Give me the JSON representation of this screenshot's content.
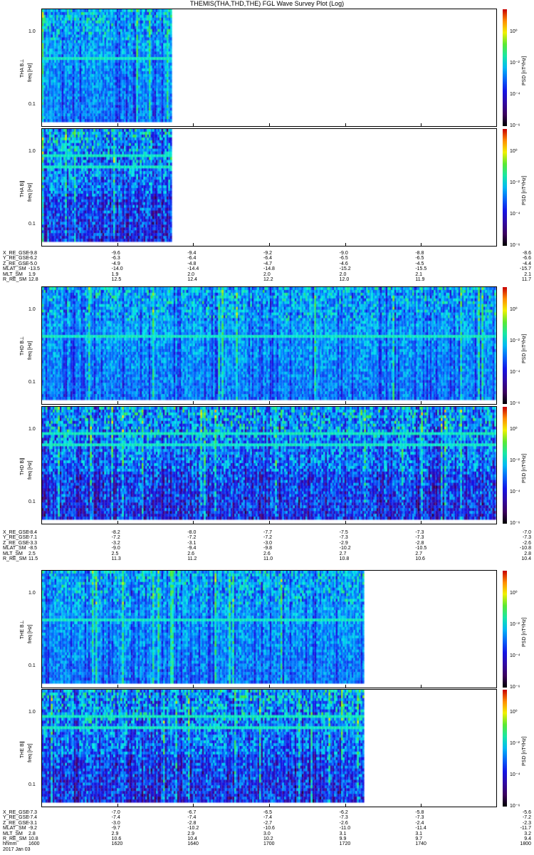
{
  "title": "THEMIS(THA,THD,THE) FGL Wave Survey Plot (Log)",
  "chart_data": {
    "type": "heatmap",
    "title": "THEMIS(THA,THD,THE) FGL Wave Survey Plot (Log)",
    "panels": [
      {
        "probe": "THA",
        "name": "THA B⊥",
        "ylabel": "freq [Hz]",
        "yticks": [
          "1.0",
          "0.1"
        ],
        "ylim": [
          0.05,
          2.1
        ],
        "data_end_fraction": 0.285,
        "zlabel": "PSD [nT²/Hz]"
      },
      {
        "probe": "THA",
        "name": "THA B∥",
        "ylabel": "freq [Hz]",
        "yticks": [
          "1.0",
          "0.1"
        ],
        "ylim": [
          0.05,
          2.1
        ],
        "data_end_fraction": 0.285,
        "zlabel": "PSD [nT²/Hz]"
      },
      {
        "probe": "THD",
        "name": "THD B⊥",
        "ylabel": "freq [Hz]",
        "yticks": [
          "1.0",
          "0.1"
        ],
        "ylim": [
          0.05,
          2.1
        ],
        "data_end_fraction": 1.0,
        "zlabel": "PSD [nT²/Hz]"
      },
      {
        "probe": "THD",
        "name": "THD B∥",
        "ylabel": "freq [Hz]",
        "yticks": [
          "1.0",
          "0.1"
        ],
        "ylim": [
          0.05,
          2.1
        ],
        "data_end_fraction": 1.0,
        "zlabel": "PSD [nT²/Hz]"
      },
      {
        "probe": "THE",
        "name": "THE B⊥",
        "ylabel": "freq [Hz]",
        "yticks": [
          "1.0",
          "0.1"
        ],
        "ylim": [
          0.05,
          2.1
        ],
        "data_end_fraction": 0.708,
        "zlabel": "PSD [nT²/Hz]"
      },
      {
        "probe": "THE",
        "name": "THE B∥",
        "ylabel": "freq [Hz]",
        "yticks": [
          "1.0",
          "0.1"
        ],
        "ylim": [
          0.05,
          2.1
        ],
        "data_end_fraction": 0.708,
        "zlabel": "PSD [nT²/Hz]"
      }
    ],
    "colorbar_ticks": [
      "10⁰",
      "10⁻²",
      "10⁻⁴",
      "10⁻⁶"
    ],
    "colorbar_range": [
      1e-07,
      10
    ],
    "ephemeris": [
      {
        "rows": [
          {
            "label": "X_RE_GSE",
            "values": [
              "-9.8",
              "-9.6",
              "-9.4",
              "-9.2",
              "-9.0",
              "-8.8",
              "-8.6"
            ]
          },
          {
            "label": "Y_RE_GSE",
            "values": [
              "-6.2",
              "-6.3",
              "-6.4",
              "-6.4",
              "-6.5",
              "-6.5",
              "-6.6"
            ]
          },
          {
            "label": "Z_RE_GSE",
            "values": [
              "-5.0",
              "-4.9",
              "-4.8",
              "-4.7",
              "-4.6",
              "-4.5",
              "-4.4"
            ]
          },
          {
            "label": "MLAT_SM",
            "values": [
              "-13.5",
              "-14.0",
              "-14.4",
              "-14.8",
              "-15.2",
              "-15.5",
              "-15.7"
            ]
          },
          {
            "label": "MLT_SM",
            "values": [
              "1.9",
              "1.9",
              "2.0",
              "2.0",
              "2.0",
              "2.1",
              "2.1"
            ]
          },
          {
            "label": "R_RE_SM",
            "values": [
              "12.8",
              "12.5",
              "12.4",
              "12.2",
              "12.0",
              "11.9",
              "11.7"
            ]
          }
        ]
      },
      {
        "rows": [
          {
            "label": "X_RE_GSE",
            "values": [
              "-8.4",
              "-8.2",
              "-8.0",
              "-7.7",
              "-7.5",
              "-7.3",
              "-7.0"
            ]
          },
          {
            "label": "Y_RE_GSE",
            "values": [
              "-7.1",
              "-7.2",
              "-7.2",
              "-7.2",
              "-7.3",
              "-7.3",
              "-7.3"
            ]
          },
          {
            "label": "Z_RE_GSE",
            "values": [
              "-3.3",
              "-3.2",
              "-3.1",
              "-3.0",
              "-2.9",
              "-2.8",
              "-2.6"
            ]
          },
          {
            "label": "MLAT_SM",
            "values": [
              "-8.5",
              "-9.0",
              "-9.4",
              "-9.8",
              "-10.2",
              "-10.5",
              "-10.8"
            ]
          },
          {
            "label": "MLT_SM",
            "values": [
              "2.5",
              "2.5",
              "2.6",
              "2.6",
              "2.7",
              "2.7",
              "2.8"
            ]
          },
          {
            "label": "R_RE_SM",
            "values": [
              "11.5",
              "11.3",
              "11.2",
              "11.0",
              "10.8",
              "10.6",
              "10.4"
            ]
          }
        ]
      },
      {
        "rows": [
          {
            "label": "X_RE_GSE",
            "values": [
              "-7.3",
              "-7.0",
              "-6.7",
              "-6.5",
              "-6.2",
              "-5.8",
              "-5.6"
            ]
          },
          {
            "label": "Y_RE_GSE",
            "values": [
              "-7.4",
              "-7.4",
              "-7.4",
              "-7.4",
              "-7.3",
              "-7.3",
              "-7.2"
            ]
          },
          {
            "label": "Z_RE_GSE",
            "values": [
              "-3.1",
              "-3.0",
              "-2.8",
              "-2.7",
              "-2.6",
              "-2.4",
              "-2.3"
            ]
          },
          {
            "label": "MLAT_SM",
            "values": [
              "-9.2",
              "-9.7",
              "-10.2",
              "-10.6",
              "-11.0",
              "-11.4",
              "-11.7"
            ]
          },
          {
            "label": "MLT_SM",
            "values": [
              "2.8",
              "2.9",
              "2.9",
              "3.0",
              "3.1",
              "3.1",
              "3.2"
            ]
          },
          {
            "label": "R_RE_SM",
            "values": [
              "10.8",
              "10.6",
              "10.4",
              "10.2",
              "9.9",
              "9.7",
              "9.4"
            ]
          },
          {
            "label": "hhmm",
            "values": [
              "1600",
              "1620",
              "1640",
              "1700",
              "1720",
              "1740",
              "1800"
            ]
          }
        ]
      }
    ],
    "date": "2017 Jan 03"
  }
}
